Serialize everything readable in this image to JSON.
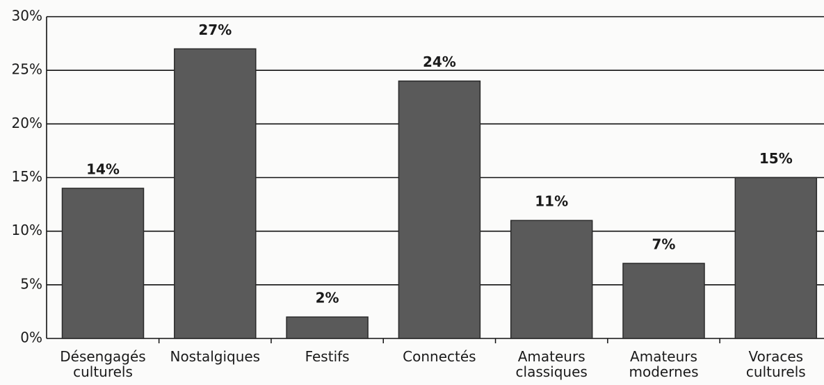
{
  "chart_data": {
    "type": "bar",
    "categories": [
      "Désengagés culturels",
      "Nostalgiques",
      "Festifs",
      "Connectés",
      "Amateurs classiques",
      "Amateurs modernes",
      "Voraces culturels"
    ],
    "values": [
      14,
      27,
      2,
      24,
      11,
      7,
      15
    ],
    "value_labels": [
      "14%",
      "27%",
      "2%",
      "24%",
      "11%",
      "7%",
      "15%"
    ],
    "color": "#5a5a5a",
    "ylim": [
      0,
      30
    ],
    "yticks": [
      {
        "value": 0,
        "label": "0%"
      },
      {
        "value": 5,
        "label": "5%"
      },
      {
        "value": 10,
        "label": "10%"
      },
      {
        "value": 15,
        "label": "15%"
      },
      {
        "value": 20,
        "label": "20%"
      },
      {
        "value": 25,
        "label": "25%"
      },
      {
        "value": 30,
        "label": "30%"
      }
    ],
    "grid": true
  }
}
